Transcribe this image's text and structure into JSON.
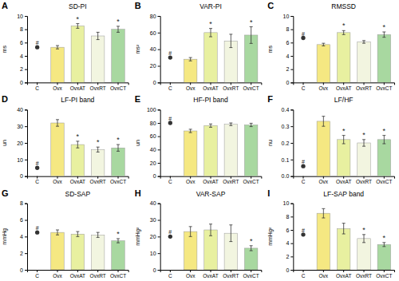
{
  "chart_data": [
    {
      "type": "bar",
      "label": "A",
      "title": "SD-PI",
      "ylabel": "ms",
      "categories": [
        "C",
        "Ovx",
        "OvxAT",
        "OvxRT",
        "OvxCT"
      ],
      "ylim": [
        0,
        10
      ],
      "yticks": [
        0,
        2,
        4,
        6,
        8,
        10
      ],
      "series": [
        {
          "type": "scatter",
          "marker": "circle",
          "color": "#333333",
          "values": [
            5.3,
            null,
            null,
            null,
            null
          ]
        },
        {
          "type": "bar",
          "colors": [
            null,
            "#F5E882",
            "#E8F0A0",
            "#F2F5E0",
            "#A8D8A0"
          ],
          "values": [
            null,
            5.3,
            8.5,
            7.0,
            8.0
          ],
          "errors": [
            null,
            0.25,
            0.35,
            0.55,
            0.45
          ]
        }
      ],
      "annotations": [
        {
          "text": "#",
          "x": "C"
        },
        {
          "text": "*",
          "x": "OvxAT"
        },
        {
          "text": "*",
          "x": "OvxCT"
        }
      ]
    },
    {
      "type": "bar",
      "label": "B",
      "title": "VAR-PI",
      "ylabel": "ms²",
      "categories": [
        "C",
        "Ovx",
        "OvxAT",
        "OvxRT",
        "OvxCT"
      ],
      "ylim": [
        0,
        80
      ],
      "yticks": [
        0,
        20,
        40,
        60,
        80
      ],
      "series": [
        {
          "type": "scatter",
          "marker": "circle",
          "color": "#333333",
          "values": [
            30,
            null,
            null,
            null,
            null
          ]
        },
        {
          "type": "bar",
          "colors": [
            null,
            "#F5E882",
            "#E8F0A0",
            "#F2F5E0",
            "#A8D8A0"
          ],
          "values": [
            null,
            28,
            60,
            50,
            57
          ],
          "errors": [
            null,
            2.0,
            5.0,
            8.0,
            10.0
          ]
        }
      ],
      "annotations": [
        {
          "text": "#",
          "x": "C"
        },
        {
          "text": "*",
          "x": "OvxAT"
        },
        {
          "text": "*",
          "x": "OvxCT"
        }
      ]
    },
    {
      "type": "bar",
      "label": "C",
      "title": "RMSSD",
      "ylabel": "ms",
      "categories": [
        "C",
        "Ovx",
        "OvxAT",
        "OvxRT",
        "OvxCT"
      ],
      "ylim": [
        0,
        10
      ],
      "yticks": [
        0,
        2,
        4,
        6,
        8,
        10
      ],
      "series": [
        {
          "type": "scatter",
          "marker": "circle",
          "color": "#333333",
          "values": [
            6.7,
            null,
            null,
            null,
            null
          ]
        },
        {
          "type": "bar",
          "colors": [
            null,
            "#F5E882",
            "#E8F0A0",
            "#F2F5E0",
            "#A8D8A0"
          ],
          "values": [
            null,
            5.7,
            7.5,
            6.1,
            7.2
          ],
          "errors": [
            null,
            0.2,
            0.3,
            0.2,
            0.4
          ]
        }
      ],
      "annotations": [
        {
          "text": "#",
          "x": "C"
        },
        {
          "text": "*",
          "x": "OvxAT"
        },
        {
          "text": "*",
          "x": "OvxCT"
        }
      ]
    },
    {
      "type": "bar",
      "label": "D",
      "title": "LF-PI band",
      "ylabel": "un",
      "categories": [
        "C",
        "Ovx",
        "OvxAT",
        "OvxRT",
        "OvxCT"
      ],
      "ylim": [
        0,
        40
      ],
      "yticks": [
        0,
        10,
        20,
        30,
        40
      ],
      "series": [
        {
          "type": "scatter",
          "marker": "circle",
          "color": "#333333",
          "values": [
            5,
            null,
            null,
            null,
            null
          ]
        },
        {
          "type": "bar",
          "colors": [
            null,
            "#F5E882",
            "#E8F0A0",
            "#F2F5E0",
            "#A8D8A0"
          ],
          "values": [
            null,
            32,
            19,
            16,
            17
          ],
          "errors": [
            null,
            2.0,
            2.0,
            1.5,
            2.0
          ]
        }
      ],
      "annotations": [
        {
          "text": "#",
          "x": "C"
        },
        {
          "text": "*",
          "x": "OvxAT"
        },
        {
          "text": "*",
          "x": "OvxRT"
        },
        {
          "text": "*",
          "x": "OvxCT"
        }
      ]
    },
    {
      "type": "bar",
      "label": "E",
      "title": "HF-PI band",
      "ylabel": "un",
      "categories": [
        "C",
        "Ovx",
        "OvxAT",
        "OvxRT",
        "OvxCT"
      ],
      "ylim": [
        0,
        100
      ],
      "yticks": [
        0,
        20,
        40,
        60,
        80,
        100
      ],
      "series": [
        {
          "type": "scatter",
          "marker": "circle",
          "color": "#333333",
          "values": [
            80,
            null,
            null,
            null,
            null
          ]
        },
        {
          "type": "bar",
          "colors": [
            null,
            "#F5E882",
            "#E8F0A0",
            "#F2F5E0",
            "#A8D8A0"
          ],
          "values": [
            null,
            68,
            76,
            78,
            77
          ],
          "errors": [
            null,
            2.5,
            2.5,
            2.0,
            2.5
          ]
        }
      ],
      "annotations": [
        {
          "text": "#",
          "x": "C"
        }
      ]
    },
    {
      "type": "bar",
      "label": "F",
      "title": "LF/HF",
      "ylabel": "nu",
      "categories": [
        "C",
        "Ovx",
        "OvxAT",
        "OvxRT",
        "OvxCT"
      ],
      "ylim": [
        0,
        0.4
      ],
      "yticks": [
        {
          "value": 0,
          "label": "0.0"
        },
        0.1,
        0.2,
        0.3,
        0.4
      ],
      "series": [
        {
          "type": "scatter",
          "marker": "circle",
          "color": "#333333",
          "values": [
            0.06,
            null,
            null,
            null,
            null
          ]
        },
        {
          "type": "bar",
          "colors": [
            null,
            "#F5E882",
            "#E8F0A0",
            "#F2F5E0",
            "#A8D8A0"
          ],
          "values": [
            null,
            0.33,
            0.22,
            0.2,
            0.22
          ],
          "errors": [
            null,
            0.03,
            0.025,
            0.02,
            0.025
          ]
        }
      ],
      "annotations": [
        {
          "text": "#",
          "x": "C"
        },
        {
          "text": "*",
          "x": "OvxAT"
        },
        {
          "text": "*",
          "x": "OvxRT"
        },
        {
          "text": "*",
          "x": "OvxCT"
        }
      ]
    },
    {
      "type": "bar",
      "label": "G",
      "title": "SD-SAP",
      "ylabel": "mmHg",
      "categories": [
        "C",
        "Ovx",
        "OvxAT",
        "OvxRT",
        "OvxCT"
      ],
      "ylim": [
        0,
        8
      ],
      "yticks": [
        0,
        2,
        4,
        6,
        8
      ],
      "series": [
        {
          "type": "scatter",
          "marker": "circle",
          "color": "#333333",
          "values": [
            4.5,
            null,
            null,
            null,
            null
          ]
        },
        {
          "type": "bar",
          "colors": [
            null,
            "#F5E882",
            "#E8F0A0",
            "#F2F5E0",
            "#A8D8A0"
          ],
          "values": [
            null,
            4.5,
            4.3,
            4.2,
            3.5
          ],
          "errors": [
            null,
            0.3,
            0.3,
            0.3,
            0.25
          ]
        }
      ],
      "annotations": [
        {
          "text": "#",
          "x": "C"
        },
        {
          "text": "*",
          "x": "OvxCT"
        }
      ]
    },
    {
      "type": "bar",
      "label": "H",
      "title": "VAR-SAP",
      "ylabel": "mmHg²",
      "categories": [
        "C",
        "Ovx",
        "OvxAT",
        "OvxRT",
        "OvxCT"
      ],
      "ylim": [
        0,
        40
      ],
      "yticks": [
        0,
        10,
        20,
        30,
        40
      ],
      "series": [
        {
          "type": "scatter",
          "marker": "circle",
          "color": "#333333",
          "values": [
            20,
            null,
            null,
            null,
            null
          ]
        },
        {
          "type": "bar",
          "colors": [
            null,
            "#F5E882",
            "#E8F0A0",
            "#F2F5E0",
            "#A8D8A0"
          ],
          "values": [
            null,
            23,
            24,
            22,
            13
          ],
          "errors": [
            null,
            3.0,
            3.5,
            5.0,
            1.5
          ]
        }
      ],
      "annotations": [
        {
          "text": "#",
          "x": "C"
        },
        {
          "text": "*",
          "x": "OvxCT"
        }
      ]
    },
    {
      "type": "bar",
      "label": "I",
      "title": "LF-SAP band",
      "ylabel": "mmHg²",
      "categories": [
        "C",
        "Ovx",
        "OvxAT",
        "OvxRT",
        "OvxCT"
      ],
      "ylim": [
        0,
        10
      ],
      "yticks": [
        0,
        2,
        4,
        6,
        8,
        10
      ],
      "series": [
        {
          "type": "scatter",
          "marker": "circle",
          "color": "#333333",
          "values": [
            5.3,
            null,
            null,
            null,
            null
          ]
        },
        {
          "type": "bar",
          "colors": [
            null,
            "#F5E882",
            "#E8F0A0",
            "#F2F5E0",
            "#A8D8A0"
          ],
          "values": [
            null,
            8.5,
            6.2,
            4.7,
            3.8
          ],
          "errors": [
            null,
            0.7,
            0.8,
            0.6,
            0.3
          ]
        }
      ],
      "annotations": [
        {
          "text": "#",
          "x": "C"
        },
        {
          "text": "*",
          "x": "OvxRT"
        },
        {
          "text": "*",
          "x": "OvxCT"
        }
      ]
    }
  ]
}
